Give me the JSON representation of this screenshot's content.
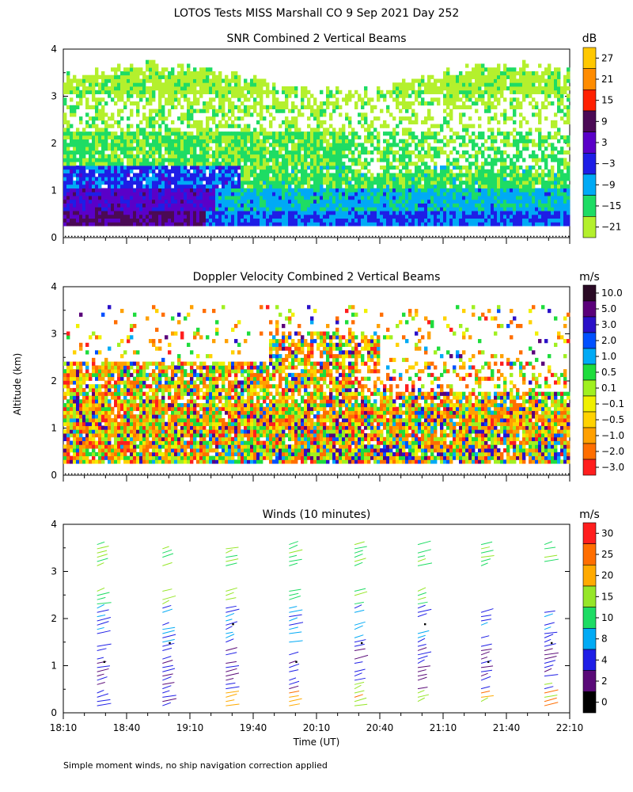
{
  "figure": {
    "title": "LOTOS Tests MISS Marshall CO   9 Sep 2021 Day 252",
    "ylabel": "Altitude (km)",
    "xlabel": "Time (UT)",
    "footnote": "Simple moment winds, no ship navigation correction applied"
  },
  "chart_data": [
    {
      "type": "heatmap",
      "title": "SNR Combined 2 Vertical Beams",
      "units": "dB",
      "ylim": [
        0,
        4
      ],
      "yticks": [
        "0",
        "1",
        "2",
        "3",
        "4"
      ],
      "colorbar_ticks": [
        "27",
        "21",
        "15",
        "9",
        "3",
        "−3",
        "−9",
        "−15",
        "−21"
      ],
      "colorbar_colors": [
        "#ffc800",
        "#ff8c00",
        "#ff2000",
        "#4b0a55",
        "#5a00c8",
        "#1e1ee6",
        "#00aaf5",
        "#1edc64",
        "#b4f02d"
      ]
    },
    {
      "type": "heatmap",
      "title": "Doppler Velocity Combined 2 Vertical Beams",
      "units": "m/s",
      "ylim": [
        0,
        4
      ],
      "yticks": [
        "0",
        "1",
        "2",
        "3",
        "4"
      ],
      "colorbar_ticks": [
        "10.0",
        "5.0",
        "3.0",
        "2.0",
        "1.0",
        "0.5",
        "0.1",
        "−0.1",
        "−0.5",
        "−1.0",
        "−2.0",
        "−3.0"
      ],
      "colorbar_colors": [
        "#2a0a25",
        "#5a007a",
        "#2a10c8",
        "#0050ff",
        "#00aaf5",
        "#1edc3c",
        "#a0f020",
        "#f0f000",
        "#ffd200",
        "#ffa000",
        "#ff6e00",
        "#ff1e1e"
      ]
    },
    {
      "type": "scatter",
      "title": "Winds (10 minutes)",
      "units": "m/s",
      "ylim": [
        0,
        4
      ],
      "yticks": [
        "0",
        "1",
        "2",
        "3",
        "4"
      ],
      "colorbar_ticks": [
        "30",
        "25",
        "20",
        "15",
        "10",
        "8",
        "4",
        "2",
        "0"
      ],
      "colorbar_colors": [
        "#ff1e1e",
        "#ff6e00",
        "#ffaa00",
        "#96e628",
        "#1edc64",
        "#00aaf5",
        "#1e1ee6",
        "#5a0a78",
        "#000000"
      ],
      "xticks": [
        "18:10",
        "18:40",
        "19:10",
        "19:40",
        "20:10",
        "20:40",
        "21:10",
        "21:40",
        "22:10"
      ],
      "profile_times_minutes_after_1810": [
        19,
        50,
        80,
        110,
        141,
        171,
        201,
        231
      ]
    }
  ]
}
